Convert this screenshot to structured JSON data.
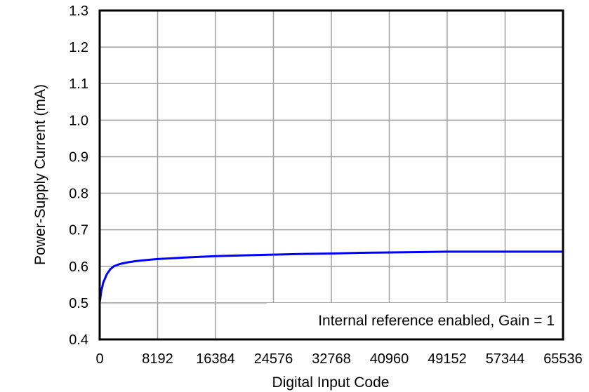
{
  "chart_data": {
    "type": "line",
    "title": "",
    "xlabel": "Digital Input Code",
    "ylabel": "Power-Supply Current (mA)",
    "xlim": [
      0,
      65536
    ],
    "ylim": [
      0.4,
      1.3
    ],
    "x_ticks": [
      0,
      8192,
      16384,
      24576,
      32768,
      40960,
      49152,
      57344,
      65536
    ],
    "x_tick_labels": [
      "0",
      "8192",
      "16384",
      "24576",
      "32768",
      "40960",
      "49152",
      "57344",
      "65536"
    ],
    "y_ticks": [
      0.4,
      0.5,
      0.6,
      0.7,
      0.8,
      0.9,
      1.0,
      1.1,
      1.2,
      1.3
    ],
    "y_tick_labels": [
      "0.4",
      "0.5",
      "0.6",
      "0.7",
      "0.8",
      "0.9",
      "1.0",
      "1.1",
      "1.2",
      "1.3"
    ],
    "grid": true,
    "annotation": "Internal reference enabled, Gain = 1",
    "series": [
      {
        "name": "Power-Supply Current",
        "color": "#0000ff",
        "x": [
          0,
          200,
          500,
          1000,
          1500,
          2000,
          2500,
          3000,
          4000,
          5000,
          6000,
          8192,
          12000,
          16384,
          20480,
          24576,
          28672,
          32768,
          36864,
          40960,
          45056,
          49152,
          53248,
          57344,
          61440,
          65536
        ],
        "values": [
          0.5,
          0.53,
          0.555,
          0.578,
          0.592,
          0.6,
          0.604,
          0.607,
          0.611,
          0.614,
          0.616,
          0.62,
          0.624,
          0.628,
          0.63,
          0.632,
          0.634,
          0.635,
          0.637,
          0.638,
          0.639,
          0.64,
          0.64,
          0.64,
          0.64,
          0.64
        ]
      }
    ]
  }
}
